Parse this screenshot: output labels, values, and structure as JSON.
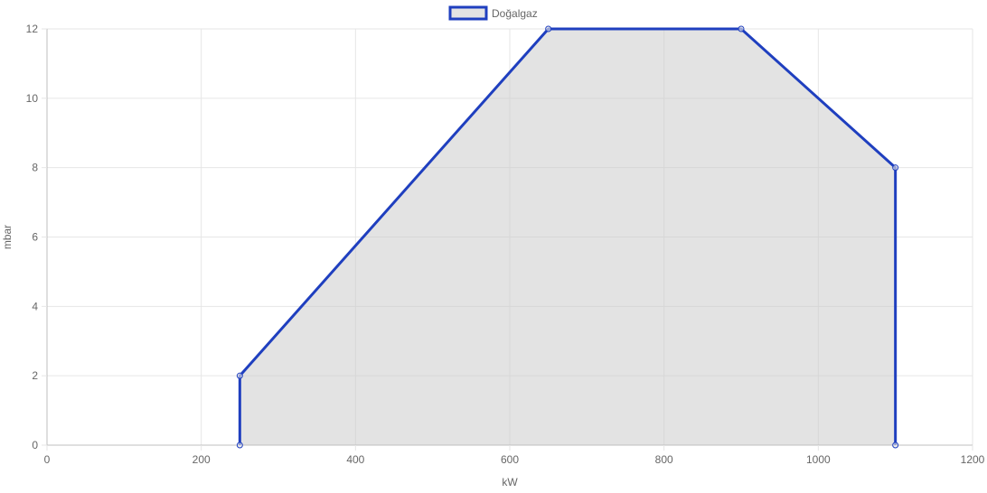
{
  "chart_data": {
    "type": "area",
    "xlabel": "kW",
    "ylabel": "mbar",
    "xlim": [
      0,
      1200
    ],
    "ylim": [
      0,
      12
    ],
    "x_ticks": [
      0,
      200,
      400,
      600,
      800,
      1000,
      1200
    ],
    "y_ticks": [
      0,
      2,
      4,
      6,
      8,
      10,
      12
    ],
    "x_tick_labels": [
      "0",
      "200",
      "400",
      "600",
      "800",
      "1000",
      "1200"
    ],
    "y_tick_labels": [
      "0",
      "2",
      "4",
      "6",
      "8",
      "10",
      "12"
    ],
    "grid": true,
    "legend_position": "top",
    "series": [
      {
        "name": "Doğalgaz",
        "points": [
          {
            "x": 250,
            "y": 0
          },
          {
            "x": 250,
            "y": 2
          },
          {
            "x": 650,
            "y": 12
          },
          {
            "x": 900,
            "y": 12
          },
          {
            "x": 1100,
            "y": 8
          },
          {
            "x": 1100,
            "y": 0
          }
        ],
        "line_color": "#1f3fbf",
        "fill_color": "#c8c8c8"
      }
    ]
  }
}
